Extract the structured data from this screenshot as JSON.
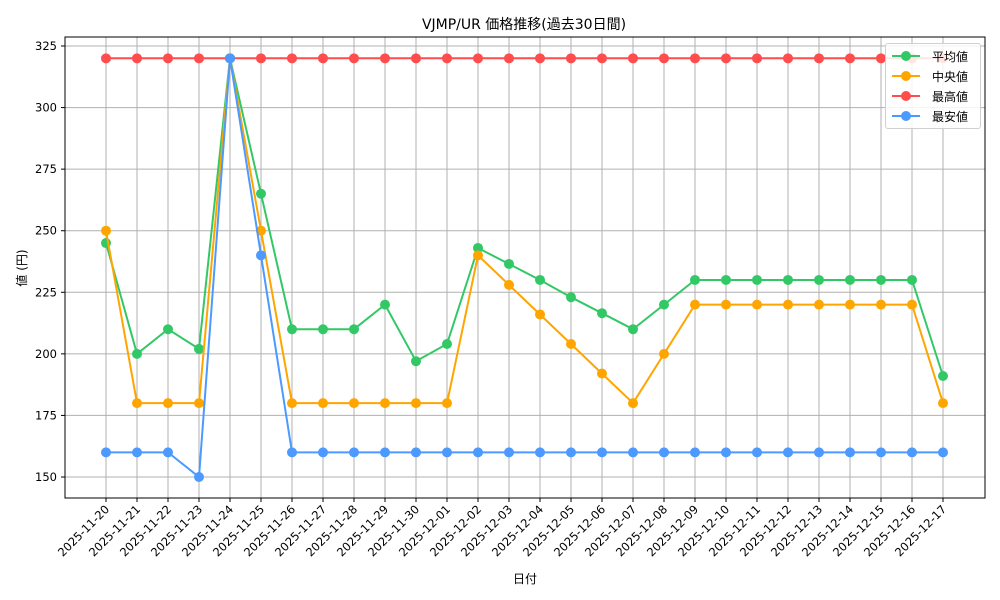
{
  "chart_data": {
    "type": "line",
    "title": "VJMP/UR 価格推移(過去30日間)",
    "xlabel": "日付",
    "ylabel": "値 (円)",
    "ylim": [
      142,
      329
    ],
    "yticks": [
      150,
      175,
      200,
      225,
      250,
      275,
      300,
      325
    ],
    "grid": true,
    "legend_position": "upper right",
    "x": [
      "2025-11-20",
      "2025-11-21",
      "2025-11-22",
      "2025-11-23",
      "2025-11-24",
      "2025-11-25",
      "2025-11-26",
      "2025-11-27",
      "2025-11-28",
      "2025-11-29",
      "2025-11-30",
      "2025-12-01",
      "2025-12-02",
      "2025-12-03",
      "2025-12-04",
      "2025-12-05",
      "2025-12-06",
      "2025-12-07",
      "2025-12-08",
      "2025-12-09",
      "2025-12-10",
      "2025-12-11",
      "2025-12-12",
      "2025-12-13",
      "2025-12-14",
      "2025-12-15",
      "2025-12-16",
      "2025-12-17"
    ],
    "series": [
      {
        "name": "平均値",
        "color": "#33c866",
        "values": [
          245,
          200,
          210,
          202,
          320,
          265,
          210,
          210,
          210,
          220,
          197,
          204,
          243,
          236.5,
          230,
          223,
          216.5,
          210,
          220,
          230,
          230,
          230,
          230,
          230,
          230,
          230,
          230,
          191
        ]
      },
      {
        "name": "中央値",
        "color": "#ffa500",
        "values": [
          250,
          180,
          180,
          180,
          320,
          250,
          180,
          180,
          180,
          180,
          180,
          180,
          240,
          228,
          216,
          204,
          192,
          180,
          200,
          220,
          220,
          220,
          220,
          220,
          220,
          220,
          220,
          180
        ]
      },
      {
        "name": "最高値",
        "color": "#ff4c4c",
        "values": [
          320,
          320,
          320,
          320,
          320,
          320,
          320,
          320,
          320,
          320,
          320,
          320,
          320,
          320,
          320,
          320,
          320,
          320,
          320,
          320,
          320,
          320,
          320,
          320,
          320,
          320,
          320,
          320
        ]
      },
      {
        "name": "最安値",
        "color": "#4c9aff",
        "values": [
          160,
          160,
          160,
          150,
          320,
          240,
          160,
          160,
          160,
          160,
          160,
          160,
          160,
          160,
          160,
          160,
          160,
          160,
          160,
          160,
          160,
          160,
          160,
          160,
          160,
          160,
          160,
          160
        ]
      }
    ]
  }
}
